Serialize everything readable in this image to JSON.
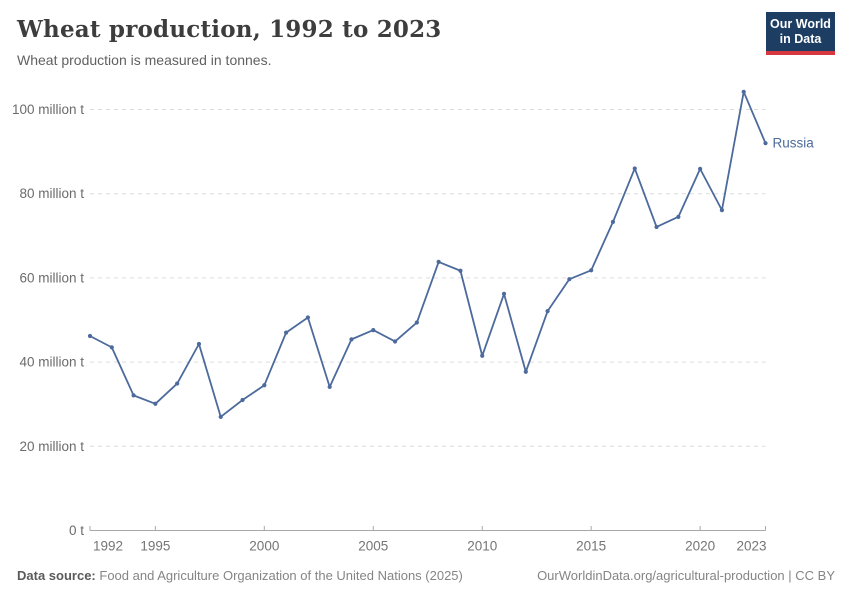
{
  "header": {
    "title": "Wheat production, 1992 to 2023",
    "subtitle": "Wheat production is measured in tonnes."
  },
  "logo": {
    "line1": "Our World",
    "line2": "in Data",
    "bg_color": "#1d3d63",
    "accent_color": "#d7383f"
  },
  "chart_data": {
    "type": "line",
    "title": "Wheat production, 1992 to 2023",
    "unit": "tonnes",
    "values_unit": "million tonnes",
    "x": [
      1992,
      1993,
      1994,
      1995,
      1996,
      1997,
      1998,
      1999,
      2000,
      2001,
      2002,
      2003,
      2004,
      2005,
      2006,
      2007,
      2008,
      2009,
      2010,
      2011,
      2012,
      2013,
      2014,
      2015,
      2016,
      2017,
      2018,
      2019,
      2020,
      2021,
      2022,
      2023
    ],
    "series": [
      {
        "name": "Russia",
        "color": "#4c6a9c",
        "values": [
          46.2,
          43.5,
          32.1,
          30.1,
          34.9,
          44.3,
          27.0,
          31.0,
          34.5,
          47.0,
          50.6,
          34.1,
          45.4,
          47.6,
          44.9,
          49.4,
          63.8,
          61.7,
          41.5,
          56.2,
          37.7,
          52.1,
          59.7,
          61.8,
          73.3,
          86.0,
          72.1,
          74.5,
          85.9,
          76.1,
          104.2,
          92.0
        ]
      }
    ],
    "xlim": [
      1992,
      2023
    ],
    "ylim": [
      0,
      105
    ],
    "xticks": [
      1992,
      1995,
      2000,
      2005,
      2010,
      2015,
      2020,
      2023
    ],
    "yticks": [
      {
        "v": 0,
        "label": "0 t"
      },
      {
        "v": 20,
        "label": "20 million t"
      },
      {
        "v": 40,
        "label": "40 million t"
      },
      {
        "v": 60,
        "label": "60 million t"
      },
      {
        "v": 80,
        "label": "80 million t"
      },
      {
        "v": 100,
        "label": "100 million t"
      }
    ],
    "grid": "horizontal-dashed",
    "legend_position": "end-of-line-label",
    "colors": {
      "grid": "#dcdcdc",
      "axis": "#a8a8a8",
      "ytick_label": "#6b6b6b",
      "xtick_label": "#757575"
    }
  },
  "footer": {
    "datasource_label": "Data source:",
    "datasource_text": "Food and Agriculture Organization of the United Nations (2025)",
    "note": "OurWorldinData.org/agricultural-production | CC BY"
  }
}
